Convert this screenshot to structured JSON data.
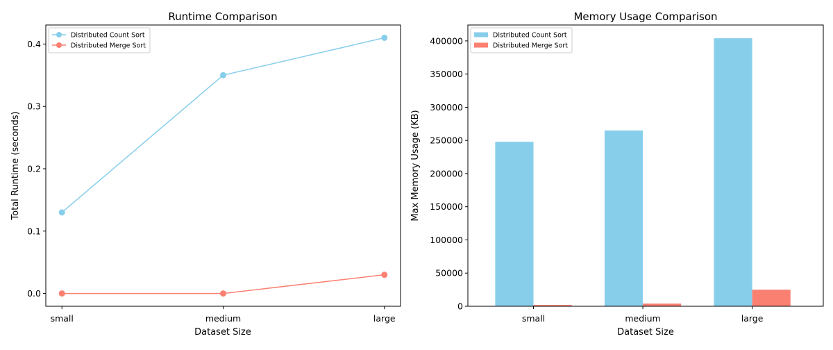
{
  "chart_data": [
    {
      "type": "line",
      "title": "Runtime Comparison",
      "xlabel": "Dataset Size",
      "ylabel": "Total Runtime (seconds)",
      "categories": [
        "small",
        "medium",
        "large"
      ],
      "series": [
        {
          "name": "Distributed Count Sort",
          "values": [
            0.13,
            0.35,
            0.41
          ],
          "color": "#87CEEB"
        },
        {
          "name": "Distributed Merge Sort",
          "values": [
            0.0,
            0.0,
            0.03
          ],
          "color": "#FA8072"
        }
      ],
      "ylim": [
        -0.0205,
        0.4305
      ],
      "yticks": [
        0.0,
        0.1,
        0.2,
        0.3,
        0.4
      ],
      "ytick_labels": [
        "0.0",
        "0.1",
        "0.2",
        "0.3",
        "0.4"
      ],
      "grid": false,
      "legend_position": "upper-left"
    },
    {
      "type": "bar",
      "title": "Memory Usage Comparison",
      "xlabel": "Dataset Size",
      "ylabel": "Max Memory Usage (KB)",
      "categories": [
        "small",
        "medium",
        "large"
      ],
      "series": [
        {
          "name": "Distributed Count Sort",
          "values": [
            248000,
            265000,
            404000
          ],
          "color": "#87CEEB"
        },
        {
          "name": "Distributed Merge Sort",
          "values": [
            2000,
            4000,
            25000
          ],
          "color": "#FA8072"
        }
      ],
      "ylim": [
        0,
        424000
      ],
      "yticks": [
        0,
        50000,
        100000,
        150000,
        200000,
        250000,
        300000,
        350000,
        400000
      ],
      "ytick_labels": [
        "0",
        "50000",
        "100000",
        "150000",
        "200000",
        "250000",
        "300000",
        "350000",
        "400000"
      ],
      "grid": false,
      "legend_position": "upper-left"
    }
  ]
}
